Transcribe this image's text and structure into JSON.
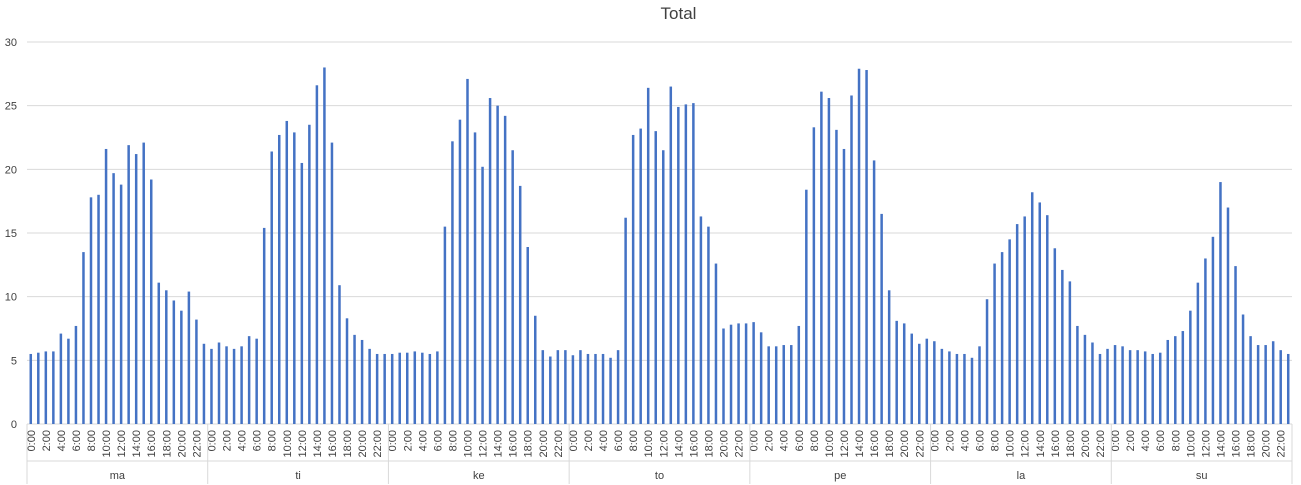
{
  "chart_data": {
    "type": "bar",
    "title": "Total",
    "xlabel": "",
    "ylabel": "",
    "ylim": [
      0,
      30
    ],
    "y_ticks": [
      "0",
      "5",
      "10",
      "15",
      "20",
      "25",
      "30"
    ],
    "grid": true,
    "color": "#4472C4",
    "hours": [
      "0:00",
      "1:00",
      "2:00",
      "3:00",
      "4:00",
      "5:00",
      "6:00",
      "7:00",
      "8:00",
      "9:00",
      "10:00",
      "11:00",
      "12:00",
      "13:00",
      "14:00",
      "15:00",
      "16:00",
      "17:00",
      "18:00",
      "19:00",
      "20:00",
      "21:00",
      "22:00",
      "23:00"
    ],
    "hour_labels_shown": [
      "0:00",
      "2:00",
      "4:00",
      "6:00",
      "8:00",
      "10:00",
      "12:00",
      "14:00",
      "16:00",
      "18:00",
      "20:00",
      "22:00"
    ],
    "days": [
      {
        "name": "ma",
        "values": [
          5.5,
          5.6,
          5.7,
          5.7,
          7.1,
          6.7,
          7.7,
          13.5,
          17.8,
          18.0,
          21.6,
          19.7,
          18.8,
          21.9,
          21.2,
          22.1,
          19.2,
          11.1,
          10.5,
          9.7,
          8.9,
          10.4,
          8.2,
          6.3
        ]
      },
      {
        "name": "ti",
        "values": [
          5.9,
          6.4,
          6.1,
          5.9,
          6.1,
          6.9,
          6.7,
          15.4,
          21.4,
          22.7,
          23.8,
          22.9,
          20.5,
          23.5,
          26.6,
          28.0,
          22.1,
          10.9,
          8.3,
          7.0,
          6.6,
          5.9,
          5.5,
          5.5
        ]
      },
      {
        "name": "ke",
        "values": [
          5.5,
          5.6,
          5.6,
          5.7,
          5.6,
          5.5,
          5.7,
          15.5,
          22.2,
          23.9,
          27.1,
          22.9,
          20.2,
          25.6,
          25.0,
          24.2,
          21.5,
          18.7,
          13.9,
          8.5,
          5.8,
          5.3,
          5.8,
          5.8
        ]
      },
      {
        "name": "to",
        "values": [
          5.4,
          5.8,
          5.5,
          5.5,
          5.5,
          5.2,
          5.8,
          16.2,
          22.7,
          23.2,
          26.4,
          23.0,
          21.5,
          26.5,
          24.9,
          25.1,
          25.2,
          16.3,
          15.5,
          12.6,
          7.5,
          7.8,
          7.9,
          7.9
        ]
      },
      {
        "name": "pe",
        "values": [
          8.0,
          7.2,
          6.1,
          6.1,
          6.2,
          6.2,
          7.7,
          18.4,
          23.3,
          26.1,
          25.6,
          23.1,
          21.6,
          25.8,
          27.9,
          27.8,
          20.7,
          16.5,
          10.5,
          8.1,
          7.9,
          7.1,
          6.3,
          6.7
        ]
      },
      {
        "name": "la",
        "values": [
          6.5,
          5.9,
          5.7,
          5.5,
          5.5,
          5.2,
          6.1,
          9.8,
          12.6,
          13.5,
          14.5,
          15.7,
          16.3,
          18.2,
          17.4,
          16.4,
          13.8,
          12.1,
          11.2,
          7.7,
          7.0,
          6.4,
          5.5,
          5.9
        ]
      },
      {
        "name": "su",
        "values": [
          6.2,
          6.1,
          5.8,
          5.8,
          5.7,
          5.5,
          5.6,
          6.6,
          6.9,
          7.3,
          8.9,
          11.1,
          13.0,
          14.7,
          19.0,
          17.0,
          12.4,
          8.6,
          6.9,
          6.2,
          6.2,
          6.5,
          5.8,
          5.5
        ]
      }
    ]
  }
}
